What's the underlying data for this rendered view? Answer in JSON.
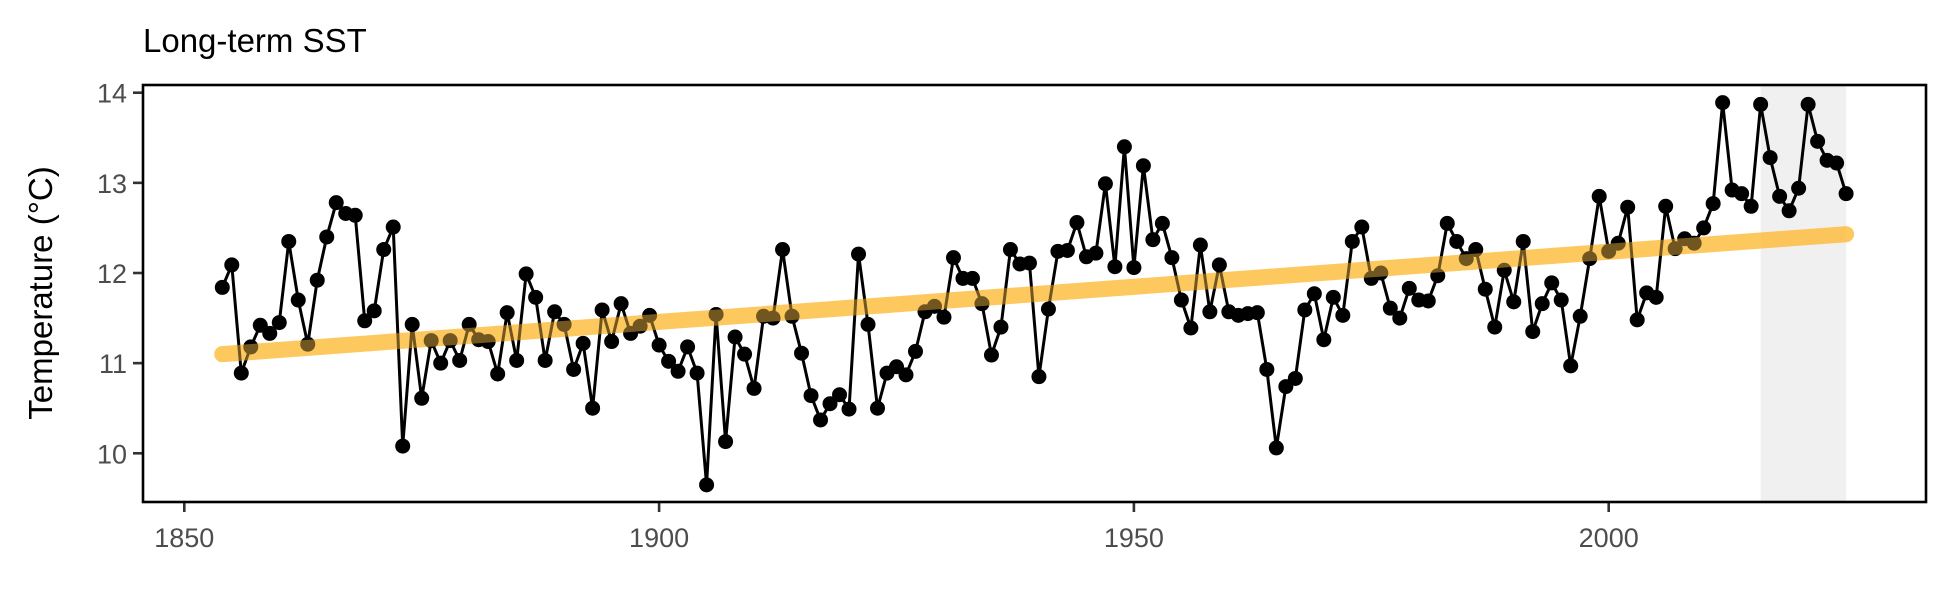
{
  "chart_data": {
    "type": "line",
    "title": "Long-term SST",
    "xlabel": "",
    "ylabel": "Temperature (°C)",
    "xlim": [
      1845.7,
      2033.6
    ],
    "ylim": [
      9.44,
      14.09
    ],
    "x_ticks": [
      1850,
      1900,
      1950,
      2000
    ],
    "y_ticks": [
      10,
      11,
      12,
      13,
      14
    ],
    "grid": false,
    "legend": null,
    "highlight_band": {
      "x_start": 2016,
      "x_end": 2025,
      "color": "#f0f0f0"
    },
    "trend_line": {
      "x": [
        1854,
        2025
      ],
      "y": [
        11.1,
        12.43
      ],
      "color": "#fdbf45",
      "opacity": 0.65
    },
    "series": [
      {
        "name": "SST",
        "color": "#000000",
        "marker": "circle",
        "x_start": 1854,
        "x_end": 2025,
        "values": [
          11.84,
          12.09,
          10.89,
          11.18,
          11.42,
          11.33,
          11.45,
          12.35,
          11.7,
          11.21,
          11.92,
          12.4,
          12.78,
          12.66,
          12.64,
          11.47,
          11.58,
          12.26,
          12.51,
          10.08,
          11.43,
          10.61,
          11.25,
          11.0,
          11.25,
          11.03,
          11.43,
          11.26,
          11.24,
          10.88,
          11.56,
          11.03,
          11.99,
          11.73,
          11.03,
          11.57,
          11.43,
          10.93,
          11.22,
          10.5,
          11.59,
          11.24,
          11.66,
          11.33,
          11.41,
          11.53,
          11.2,
          11.02,
          10.91,
          11.18,
          10.89,
          9.65,
          11.54,
          10.13,
          11.29,
          11.1,
          10.72,
          11.52,
          11.5,
          12.26,
          11.52,
          11.11,
          10.64,
          10.37,
          10.55,
          10.65,
          10.49,
          12.21,
          11.43,
          10.5,
          10.89,
          10.96,
          10.87,
          11.13,
          11.57,
          11.63,
          11.51,
          12.17,
          11.94,
          11.94,
          11.66,
          11.09,
          11.4,
          12.26,
          12.1,
          12.11,
          10.85,
          11.6,
          12.24,
          12.25,
          12.56,
          12.18,
          12.22,
          12.99,
          12.07,
          13.4,
          12.06,
          13.19,
          12.37,
          12.55,
          12.17,
          11.7,
          11.39,
          12.31,
          11.57,
          12.09,
          11.57,
          11.53,
          11.55,
          11.56,
          10.93,
          10.06,
          10.74,
          10.83,
          11.59,
          11.77,
          11.26,
          11.73,
          11.53,
          12.35,
          12.51,
          11.94,
          12.0,
          11.61,
          11.5,
          11.83,
          11.7,
          11.69,
          11.97,
          12.55,
          12.35,
          12.16,
          12.26,
          11.82,
          11.4,
          12.03,
          11.68,
          12.35,
          11.35,
          11.66,
          11.89,
          11.7,
          10.97,
          11.52,
          12.16,
          12.85,
          12.24,
          12.33,
          12.73,
          11.48,
          11.78,
          11.73,
          12.74,
          12.27,
          12.38,
          12.33,
          12.5,
          12.77,
          13.89,
          12.92,
          12.88,
          12.74,
          13.87,
          13.28,
          12.85,
          12.69,
          12.94,
          13.87,
          13.46,
          13.25,
          13.22,
          12.88
        ]
      }
    ]
  }
}
